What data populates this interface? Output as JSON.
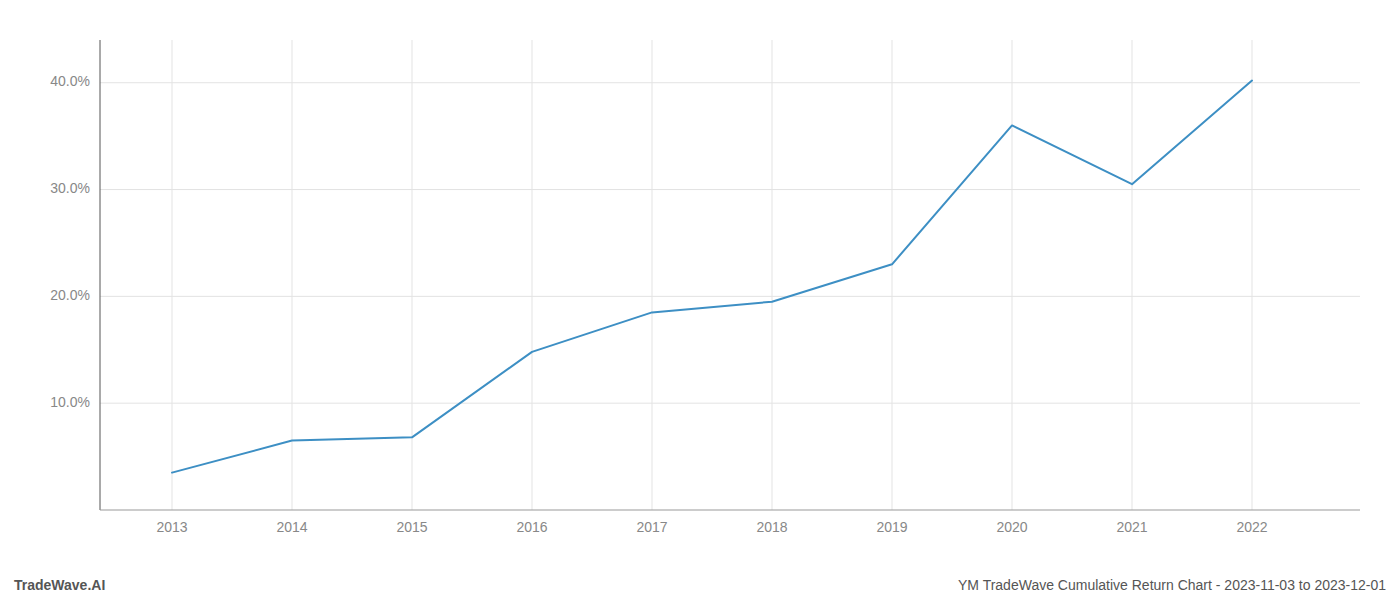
{
  "chart_data": {
    "type": "line",
    "x": [
      2013,
      2014,
      2015,
      2016,
      2017,
      2018,
      2019,
      2020,
      2021,
      2022
    ],
    "values": [
      3.5,
      6.5,
      6.8,
      14.8,
      18.5,
      19.5,
      23.0,
      36.0,
      30.5,
      40.2
    ],
    "color": "#3d8fc4",
    "xlim": [
      2012.4,
      2022.9
    ],
    "xticks": [
      2013,
      2014,
      2015,
      2016,
      2017,
      2018,
      2019,
      2020,
      2021,
      2022
    ],
    "ylim": [
      0,
      44
    ],
    "yticks": [
      {
        "value": 10.0,
        "label": "10.0%"
      },
      {
        "value": 20.0,
        "label": "20.0%"
      },
      {
        "value": 30.0,
        "label": "30.0%"
      },
      {
        "value": 40.0,
        "label": "40.0%"
      }
    ],
    "grid": true,
    "annotations": [
      "TradeWave.AI",
      "YM TradeWave Cumulative Return Chart - 2023-11-03 to 2023-12-01"
    ]
  }
}
